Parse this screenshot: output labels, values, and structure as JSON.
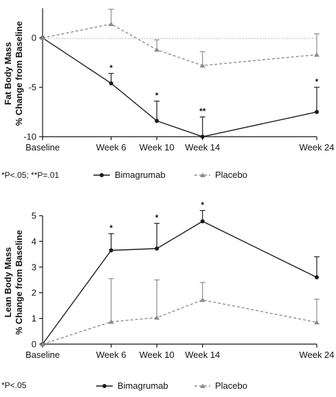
{
  "chart_data": [
    {
      "type": "line",
      "ylabel_line1": "Fat Body Mass",
      "ylabel_line2": "% Change from Baseline",
      "xlabel": "",
      "categories": [
        "Baseline",
        "Week 6",
        "Week 10",
        "Week 14",
        "Week 24"
      ],
      "x": [
        0,
        6,
        10,
        14,
        24
      ],
      "ylim": [
        -10,
        3
      ],
      "yticks": [
        0,
        -5,
        -10
      ],
      "zero_reference_line": true,
      "series": [
        {
          "name": "Bimagrumab",
          "color": "#1a1a1a",
          "dash": "solid",
          "marker": "circle",
          "values": [
            0,
            -4.6,
            -8.4,
            -10.0,
            -7.5
          ],
          "error_upper": [
            0,
            -3.6,
            -6.4,
            -8.0,
            -5.0
          ],
          "significance": [
            "",
            "*",
            "*",
            "**",
            "*"
          ]
        },
        {
          "name": "Placebo",
          "color": "#8c8c8c",
          "dash": "dashed",
          "marker": "triangle",
          "values": [
            0,
            1.4,
            -1.2,
            -2.8,
            -1.7
          ],
          "error_upper": [
            0,
            2.9,
            -0.2,
            -1.4,
            0.4
          ],
          "error_lower": [
            0,
            1.4,
            -1.2,
            -2.8,
            -1.7
          ],
          "significance": [
            "",
            "",
            "",
            "",
            ""
          ]
        }
      ],
      "footnote": "*P<.05; **P=.01",
      "legend_position": "bottom"
    },
    {
      "type": "line",
      "ylabel_line1": "Lean Body Mass",
      "ylabel_line2": "% Change from Baseline",
      "xlabel": "",
      "categories": [
        "Baseline",
        "Week 6",
        "Week 10",
        "Week 14",
        "Week 24"
      ],
      "x": [
        0,
        6,
        10,
        14,
        24
      ],
      "ylim": [
        0,
        5
      ],
      "yticks": [
        0,
        1,
        2,
        3,
        4,
        5
      ],
      "zero_reference_line": false,
      "series": [
        {
          "name": "Bimagrumab",
          "color": "#1a1a1a",
          "dash": "solid",
          "marker": "circle",
          "values": [
            0,
            3.65,
            3.72,
            4.78,
            2.6
          ],
          "error_upper": [
            0,
            4.3,
            4.7,
            5.2,
            3.4
          ],
          "significance": [
            "",
            "*",
            "*",
            "*",
            ""
          ]
        },
        {
          "name": "Placebo",
          "color": "#8c8c8c",
          "dash": "dashed",
          "marker": "triangle",
          "values": [
            0,
            0.87,
            1.03,
            1.72,
            0.85
          ],
          "error_upper": [
            0,
            2.55,
            2.5,
            2.4,
            1.75
          ],
          "significance": [
            "",
            "",
            "",
            "",
            ""
          ]
        }
      ],
      "footnote": "*P<.05",
      "legend_position": "bottom"
    }
  ]
}
